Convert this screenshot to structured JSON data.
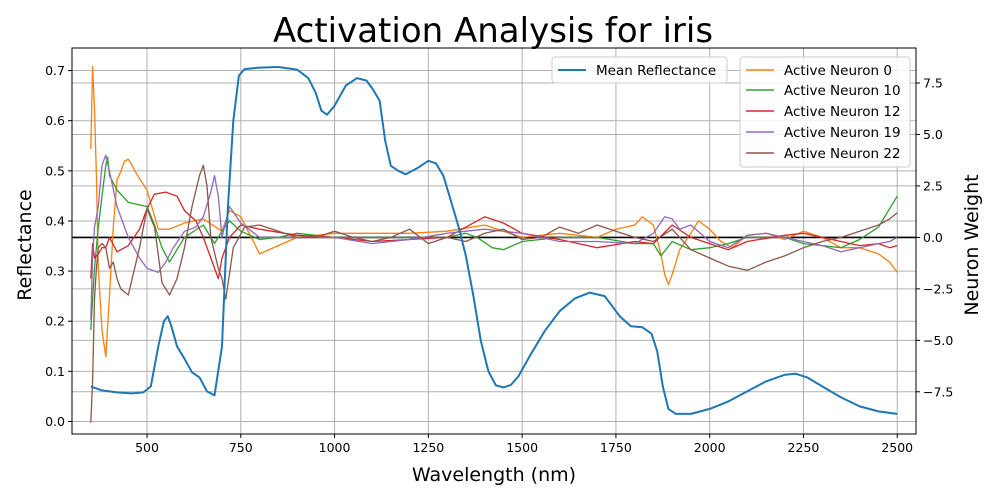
{
  "chart_data": {
    "type": "line",
    "title": "Activation Analysis for iris",
    "xlabel": "Wavelength (nm)",
    "ylabel": "Reflectance",
    "y2label": "Neuron Weight",
    "xlim": [
      300,
      2550
    ],
    "ylim": [
      -0.025,
      0.745
    ],
    "y2lim": [
      -9.55,
      9.2
    ],
    "xticks": [
      500,
      750,
      1000,
      1250,
      1500,
      1750,
      2000,
      2250,
      2500
    ],
    "yticks": [
      0.0,
      0.1,
      0.2,
      0.3,
      0.4,
      0.5,
      0.6,
      0.7
    ],
    "y2ticks": [
      -7.5,
      -5.0,
      -2.5,
      0.0,
      2.5,
      5.0,
      7.5
    ],
    "xtick_labels": [
      "500",
      "750",
      "1000",
      "1250",
      "1500",
      "1750",
      "2000",
      "2250",
      "2500"
    ],
    "ytick_labels": [
      "0.0",
      "0.1",
      "0.2",
      "0.3",
      "0.4",
      "0.5",
      "0.6",
      "0.7"
    ],
    "y2tick_labels": [
      "−7.5",
      "−5.0",
      "−2.5",
      "0.0",
      "2.5",
      "5.0",
      "7.5"
    ],
    "grid": true,
    "hline_y2": 0,
    "legend_left": {
      "placement": "top-center",
      "entries": [
        "Mean Reflectance"
      ]
    },
    "legend_right": {
      "placement": "top-right",
      "entries": [
        "Active Neuron 0",
        "Active Neuron 10",
        "Active Neuron 12",
        "Active Neuron 19",
        "Active Neuron 22"
      ]
    },
    "series": [
      {
        "name": "Mean Reflectance",
        "axis": "left",
        "color": "#1f77b4",
        "x": [
          350,
          380,
          420,
          460,
          490,
          510,
          530,
          545,
          555,
          565,
          580,
          600,
          620,
          640,
          660,
          680,
          700,
          715,
          730,
          745,
          760,
          800,
          850,
          900,
          930,
          950,
          965,
          980,
          1000,
          1030,
          1060,
          1085,
          1100,
          1120,
          1135,
          1150,
          1170,
          1190,
          1220,
          1250,
          1270,
          1290,
          1310,
          1330,
          1350,
          1370,
          1390,
          1410,
          1430,
          1450,
          1470,
          1490,
          1520,
          1560,
          1600,
          1640,
          1680,
          1720,
          1760,
          1790,
          1820,
          1845,
          1860,
          1875,
          1890,
          1910,
          1950,
          2000,
          2050,
          2100,
          2150,
          2200,
          2230,
          2260,
          2300,
          2350,
          2400,
          2450,
          2500
        ],
        "y": [
          0.07,
          0.062,
          0.058,
          0.056,
          0.058,
          0.07,
          0.15,
          0.2,
          0.21,
          0.19,
          0.15,
          0.125,
          0.098,
          0.088,
          0.06,
          0.052,
          0.15,
          0.42,
          0.6,
          0.69,
          0.703,
          0.706,
          0.707,
          0.702,
          0.685,
          0.655,
          0.62,
          0.612,
          0.63,
          0.67,
          0.685,
          0.68,
          0.665,
          0.64,
          0.56,
          0.51,
          0.5,
          0.493,
          0.505,
          0.52,
          0.515,
          0.49,
          0.44,
          0.39,
          0.33,
          0.25,
          0.16,
          0.1,
          0.072,
          0.068,
          0.073,
          0.09,
          0.13,
          0.18,
          0.22,
          0.245,
          0.257,
          0.25,
          0.21,
          0.19,
          0.188,
          0.175,
          0.14,
          0.07,
          0.025,
          0.015,
          0.015,
          0.025,
          0.04,
          0.06,
          0.08,
          0.093,
          0.095,
          0.088,
          0.07,
          0.048,
          0.03,
          0.02,
          0.015
        ]
      },
      {
        "name": "Active Neuron 0",
        "axis": "right",
        "color": "#ff7f0e",
        "x": [
          350,
          355,
          360,
          365,
          370,
          380,
          390,
          400,
          410,
          420,
          430,
          440,
          450,
          460,
          475,
          500,
          530,
          560,
          600,
          650,
          700,
          720,
          750,
          800,
          850,
          900,
          1000,
          1100,
          1200,
          1300,
          1400,
          1500,
          1600,
          1700,
          1750,
          1800,
          1820,
          1850,
          1870,
          1880,
          1890,
          1900,
          1920,
          1950,
          1970,
          2000,
          2030,
          2060,
          2100,
          2150,
          2200,
          2250,
          2300,
          2350,
          2400,
          2450,
          2480,
          2500
        ],
        "y": [
          4.3,
          8.3,
          6.2,
          3.0,
          -1.5,
          -4.5,
          -5.8,
          -2.8,
          0.5,
          2.8,
          3.2,
          3.7,
          3.8,
          3.5,
          3.0,
          2.3,
          0.4,
          0.4,
          0.7,
          0.9,
          0.3,
          1.3,
          1.0,
          -0.8,
          -0.4,
          0.0,
          0.2,
          0.2,
          0.2,
          0.3,
          0.6,
          0.0,
          0.2,
          0.0,
          0.4,
          0.6,
          1.0,
          0.6,
          -0.8,
          -1.8,
          -2.3,
          -1.8,
          -0.6,
          0.2,
          0.8,
          0.4,
          -0.2,
          -0.5,
          0.1,
          0.2,
          -0.1,
          0.3,
          0.0,
          -0.5,
          -0.5,
          -0.8,
          -1.2,
          -1.7
        ]
      },
      {
        "name": "Active Neuron 10",
        "axis": "right",
        "color": "#2ca02c",
        "x": [
          350,
          355,
          360,
          370,
          380,
          390,
          395,
          400,
          420,
          450,
          500,
          520,
          540,
          560,
          580,
          600,
          650,
          680,
          700,
          720,
          750,
          800,
          850,
          900,
          1000,
          1100,
          1200,
          1300,
          1350,
          1380,
          1420,
          1450,
          1500,
          1600,
          1700,
          1800,
          1850,
          1870,
          1900,
          1950,
          2000,
          2050,
          2100,
          2200,
          2250,
          2300,
          2350,
          2400,
          2450,
          2480,
          2500
        ],
        "y": [
          -4.5,
          -3.0,
          -1.5,
          0.5,
          2.0,
          3.5,
          3.9,
          3.0,
          2.3,
          1.7,
          1.5,
          0.6,
          -0.5,
          -1.2,
          -0.6,
          0.0,
          0.6,
          -0.3,
          0.3,
          0.8,
          0.3,
          -0.1,
          0.0,
          0.2,
          0.0,
          0.0,
          0.0,
          0.0,
          0.2,
          0.0,
          -0.5,
          -0.6,
          -0.2,
          0.0,
          0.0,
          -0.3,
          -0.3,
          -0.9,
          -0.2,
          -0.6,
          -0.5,
          -0.3,
          0.0,
          0.0,
          -0.3,
          -0.4,
          -0.5,
          -0.1,
          0.5,
          1.4,
          2.0
        ]
      },
      {
        "name": "Active Neuron 12",
        "axis": "right",
        "color": "#d62728",
        "x": [
          350,
          355,
          360,
          370,
          380,
          390,
          400,
          420,
          450,
          480,
          500,
          520,
          550,
          580,
          600,
          630,
          650,
          670,
          690,
          700,
          720,
          750,
          800,
          900,
          1000,
          1100,
          1200,
          1300,
          1350,
          1400,
          1450,
          1500,
          1600,
          1700,
          1800,
          1850,
          1900,
          1950,
          2000,
          2050,
          2100,
          2200,
          2250,
          2300,
          2350,
          2400,
          2450,
          2480,
          2500
        ],
        "y": [
          -2.0,
          -0.3,
          -1.0,
          -0.8,
          -0.5,
          -0.5,
          0.0,
          -0.7,
          -0.4,
          0.4,
          1.4,
          2.1,
          2.2,
          2.0,
          1.3,
          0.8,
          0.0,
          -1.0,
          -2.0,
          -1.0,
          0.0,
          0.6,
          0.4,
          0.1,
          0.0,
          -0.2,
          -0.1,
          0.0,
          0.5,
          1.0,
          0.7,
          0.2,
          -0.1,
          -0.5,
          -0.2,
          -0.3,
          0.6,
          0.0,
          -0.3,
          -0.6,
          -0.2,
          0.1,
          0.2,
          0.0,
          -0.2,
          -0.4,
          -0.3,
          -0.5,
          -0.4
        ]
      },
      {
        "name": "Active Neuron 19",
        "axis": "right",
        "color": "#9467bd",
        "x": [
          350,
          355,
          360,
          370,
          380,
          390,
          400,
          420,
          450,
          480,
          500,
          530,
          550,
          570,
          600,
          630,
          650,
          670,
          680,
          690,
          700,
          720,
          750,
          800,
          900,
          1000,
          1100,
          1200,
          1300,
          1400,
          1500,
          1600,
          1700,
          1800,
          1850,
          1880,
          1900,
          1920,
          1950,
          2000,
          2050,
          2100,
          2150,
          2200,
          2250,
          2300,
          2350,
          2400,
          2450,
          2480,
          2500
        ],
        "y": [
          -4.0,
          -1.0,
          0.5,
          1.5,
          3.5,
          4.0,
          3.2,
          1.5,
          0.0,
          -1.0,
          -1.5,
          -1.7,
          -1.2,
          -0.5,
          0.3,
          0.5,
          1.0,
          2.2,
          3.0,
          2.0,
          0.0,
          1.5,
          0.7,
          0.0,
          0.0,
          0.0,
          -0.3,
          -0.1,
          0.2,
          0.4,
          0.2,
          -0.2,
          -0.2,
          -0.3,
          0.2,
          1.0,
          0.9,
          0.4,
          0.6,
          -0.2,
          -0.5,
          0.1,
          0.2,
          0.0,
          -0.2,
          -0.4,
          -0.7,
          -0.5,
          -0.3,
          -0.2,
          0.0
        ]
      },
      {
        "name": "Active Neuron 22",
        "axis": "right",
        "color": "#8c564b",
        "x": [
          350,
          355,
          360,
          365,
          370,
          380,
          390,
          400,
          410,
          420,
          430,
          450,
          480,
          500,
          520,
          540,
          560,
          580,
          600,
          620,
          640,
          650,
          660,
          670,
          690,
          700,
          710,
          730,
          760,
          800,
          900,
          950,
          1000,
          1050,
          1100,
          1150,
          1200,
          1250,
          1300,
          1350,
          1400,
          1450,
          1500,
          1550,
          1600,
          1650,
          1700,
          1750,
          1800,
          1850,
          1900,
          1950,
          2000,
          2050,
          2100,
          2150,
          2200,
          2250,
          2300,
          2350,
          2400,
          2450,
          2480,
          2500
        ],
        "y": [
          -9.0,
          -7.0,
          -3.0,
          -1.5,
          -0.5,
          -0.3,
          -0.5,
          -1.5,
          -1.2,
          -2.0,
          -2.5,
          -2.8,
          -0.5,
          1.4,
          0.5,
          -2.2,
          -2.8,
          -2.0,
          -0.5,
          1.5,
          3.0,
          3.5,
          2.5,
          0.0,
          -1.5,
          -2.0,
          -3.0,
          -0.5,
          0.5,
          0.6,
          0.0,
          0.0,
          0.3,
          0.0,
          -0.2,
          0.0,
          0.4,
          -0.3,
          0.0,
          -0.2,
          0.2,
          0.4,
          -0.1,
          0.0,
          0.5,
          0.2,
          0.6,
          0.3,
          0.0,
          -0.2,
          0.4,
          -0.6,
          -1.0,
          -1.4,
          -1.6,
          -1.2,
          -0.9,
          -0.5,
          -0.2,
          0.0,
          0.3,
          0.6,
          0.9,
          1.2
        ]
      }
    ]
  }
}
